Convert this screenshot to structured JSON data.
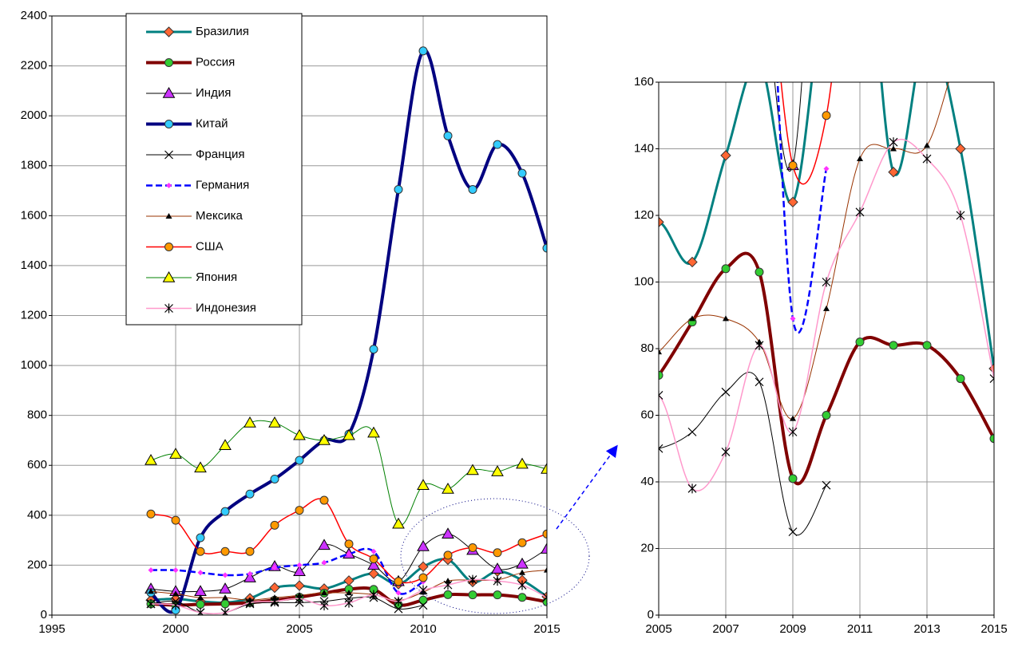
{
  "chart_data": [
    {
      "type": "line",
      "x": [
        1999,
        2000,
        2001,
        2002,
        2003,
        2004,
        2005,
        2006,
        2007,
        2008,
        2009,
        2010,
        2011,
        2012,
        2013,
        2014,
        2015
      ],
      "xlim": [
        1995,
        2015
      ],
      "xticks": [
        1995,
        2000,
        2005,
        2010,
        2015
      ],
      "ylim": [
        0,
        2400
      ],
      "yticks": [
        0,
        200,
        400,
        600,
        800,
        1000,
        1200,
        1400,
        1600,
        1800,
        2000,
        2200,
        2400
      ],
      "grid": true,
      "smooth": true,
      "legend": "top-left",
      "series": [
        {
          "name": "Бразилия",
          "color": "#008080",
          "marker": "diamond",
          "marker_color": "#ff6633",
          "line_width": 3,
          "values": [
            60,
            65,
            55,
            50,
            67,
            110,
            118,
            106,
            138,
            166,
            124,
            194,
            222,
            133,
            175,
            140,
            74
          ]
        },
        {
          "name": "Россия",
          "color": "#800000",
          "marker": "circle",
          "marker_color": "#33cc33",
          "line_width": 4,
          "values": [
            45,
            40,
            43,
            45,
            50,
            60,
            72,
            88,
            104,
            103,
            41,
            60,
            82,
            81,
            81,
            71,
            53
          ]
        },
        {
          "name": "Индия",
          "color": "#000000",
          "marker": "triangle",
          "marker_color": "#cc33ff",
          "line_width": 1,
          "values": [
            105,
            95,
            95,
            105,
            150,
            195,
            175,
            280,
            245,
            200,
            135,
            275,
            325,
            260,
            185,
            205,
            265
          ]
        },
        {
          "name": "Китай",
          "color": "#000080",
          "marker": "circle",
          "marker_color": "#33ccff",
          "line_width": 4,
          "values": [
            90,
            20,
            310,
            415,
            485,
            545,
            620,
            700,
            725,
            1065,
            1705,
            2260,
            1920,
            1705,
            1885,
            1770,
            1470
          ]
        },
        {
          "name": "Франция",
          "color": "#000000",
          "marker": "cross",
          "marker_color": "#000000",
          "line_width": 1,
          "values": [
            45,
            55,
            10,
            10,
            45,
            50,
            50,
            55,
            67,
            70,
            25,
            39,
            null,
            null,
            null,
            null,
            null
          ]
        },
        {
          "name": "Германия",
          "color": "#0000ff",
          "marker": "small-diamond",
          "marker_color": "#ff33ff",
          "line_width": 2.5,
          "dash": true,
          "values": [
            180,
            180,
            170,
            160,
            165,
            190,
            200,
            210,
            245,
            255,
            89,
            134,
            null,
            null,
            null,
            null,
            null
          ]
        },
        {
          "name": "Мексика",
          "color": "#993300",
          "marker": "small-triangle",
          "marker_color": "#000000",
          "line_width": 1,
          "values": [
            95,
            85,
            70,
            70,
            60,
            70,
            79,
            89,
            89,
            82,
            59,
            92,
            137,
            140,
            141,
            170,
            180
          ]
        },
        {
          "name": "США",
          "color": "#ff0000",
          "marker": "circle",
          "marker_color": "#ff9900",
          "line_width": 1.5,
          "values": [
            405,
            380,
            255,
            255,
            255,
            360,
            420,
            460,
            285,
            225,
            135,
            150,
            240,
            270,
            250,
            290,
            325
          ]
        },
        {
          "name": "Япония",
          "color": "#008000",
          "marker": "triangle",
          "marker_color": "#ffff00",
          "line_width": 1,
          "values": [
            620,
            645,
            590,
            680,
            770,
            770,
            720,
            700,
            720,
            730,
            365,
            520,
            505,
            580,
            575,
            605,
            585
          ]
        },
        {
          "name": "Индонезия",
          "color": "#ff99cc",
          "marker": "asterisk",
          "marker_color": "#000000",
          "line_width": 1.5,
          "values": [
            45,
            40,
            10,
            10,
            50,
            55,
            66,
            38,
            49,
            81,
            55,
            100,
            121,
            142,
            137,
            120,
            71
          ]
        }
      ]
    },
    {
      "type": "zoom",
      "xlim": [
        2005,
        2015
      ],
      "xticks": [
        2005,
        2007,
        2009,
        2011,
        2013,
        2015
      ],
      "ylim": [
        0,
        160
      ],
      "yticks": [
        0,
        20,
        40,
        60,
        80,
        100,
        120,
        140,
        160
      ],
      "grid": true
    }
  ]
}
